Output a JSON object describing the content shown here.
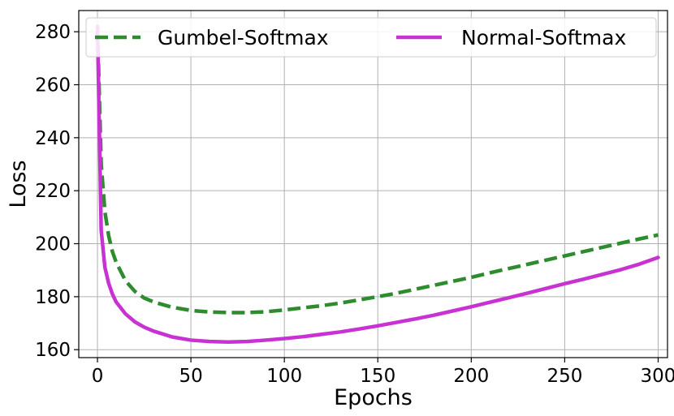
{
  "chart_data": {
    "type": "line",
    "xlabel": "Epochs",
    "ylabel": "Loss",
    "xlim": [
      -10,
      305
    ],
    "ylim": [
      157,
      288
    ],
    "xticks": [
      0,
      50,
      100,
      150,
      200,
      250,
      300
    ],
    "yticks": [
      160,
      180,
      200,
      220,
      240,
      260,
      280
    ],
    "grid": true,
    "legend_position": "top",
    "series": [
      {
        "name": "Gumbel-Softmax",
        "color": "#2e8b2e",
        "style": "dashed",
        "x": [
          0,
          2,
          4,
          6,
          8,
          10,
          15,
          20,
          25,
          30,
          40,
          50,
          60,
          70,
          80,
          90,
          100,
          110,
          120,
          130,
          140,
          150,
          160,
          170,
          180,
          190,
          200,
          210,
          220,
          230,
          240,
          250,
          260,
          270,
          280,
          290,
          300
        ],
        "y": [
          282,
          230,
          212,
          203,
          197,
          193,
          186,
          182,
          179.5,
          178,
          176,
          174.8,
          174.2,
          174.0,
          174.0,
          174.3,
          175.0,
          175.8,
          176.6,
          177.6,
          178.8,
          180.0,
          181.3,
          182.8,
          184.3,
          185.8,
          187.3,
          189.0,
          190.6,
          192.2,
          193.8,
          195.4,
          197.0,
          198.6,
          200.2,
          201.8,
          203.3
        ]
      },
      {
        "name": "Normal-Softmax",
        "color": "#c832d2",
        "style": "solid",
        "x": [
          0,
          2,
          4,
          6,
          8,
          10,
          15,
          20,
          25,
          30,
          40,
          50,
          60,
          70,
          80,
          90,
          100,
          110,
          120,
          130,
          140,
          150,
          160,
          170,
          180,
          190,
          200,
          210,
          220,
          230,
          240,
          250,
          260,
          270,
          280,
          290,
          300
        ],
        "y": [
          282,
          205,
          191,
          185,
          181,
          178,
          173.5,
          170.5,
          168.5,
          167,
          164.8,
          163.6,
          163.1,
          162.9,
          163.1,
          163.6,
          164.2,
          164.9,
          165.8,
          166.7,
          167.8,
          169.0,
          170.3,
          171.6,
          173.0,
          174.6,
          176.2,
          177.9,
          179.6,
          181.3,
          183.1,
          184.9,
          186.6,
          188.4,
          190.2,
          192.3,
          194.8
        ]
      }
    ]
  }
}
